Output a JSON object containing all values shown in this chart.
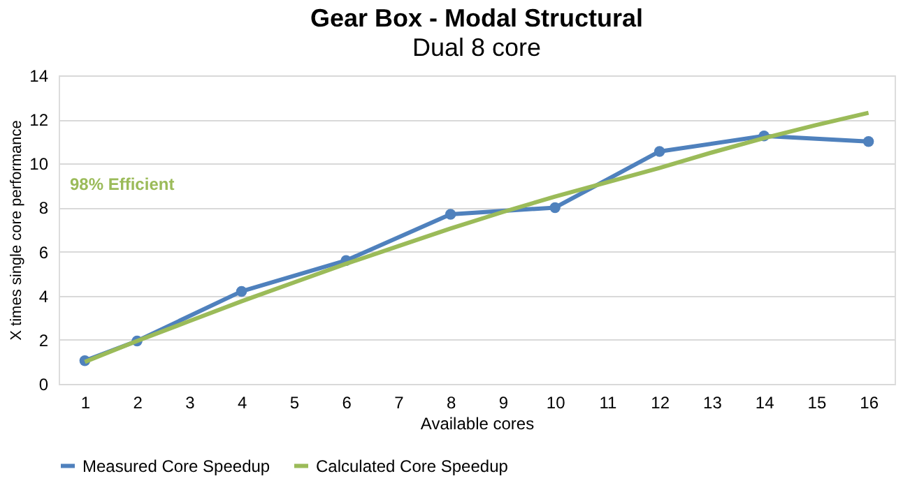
{
  "chart_data": {
    "type": "line",
    "title": "Gear Box - Modal Structural",
    "subtitle": "Dual 8 core",
    "xlabel": "Available cores",
    "ylabel": "X times single core performance",
    "xlim": [
      0.5,
      16.5
    ],
    "xticks": [
      1,
      2,
      3,
      4,
      5,
      6,
      7,
      8,
      9,
      10,
      11,
      12,
      13,
      14,
      15,
      16
    ],
    "ylim": [
      0,
      14
    ],
    "yticks": [
      0,
      2,
      4,
      6,
      8,
      10,
      12,
      14
    ],
    "grid": "y",
    "legend": "bottom",
    "line_style": "solid",
    "series": [
      {
        "name": "Measured Core Speedup",
        "color": "#4f81bd",
        "marker": "circle",
        "x": [
          1,
          2,
          4,
          6,
          8,
          10,
          12,
          14,
          16
        ],
        "values": [
          1.05,
          1.95,
          4.2,
          5.6,
          7.7,
          8.0,
          10.55,
          11.25,
          11.0
        ]
      },
      {
        "name": "Calculated Core Speedup",
        "color": "#9bbb59",
        "marker": "none",
        "x": [
          1,
          2,
          3,
          4,
          5,
          6,
          7,
          8,
          9,
          10,
          11,
          12,
          13,
          14,
          15,
          16
        ],
        "values": [
          1.0,
          1.95,
          2.85,
          3.75,
          4.6,
          5.45,
          6.25,
          7.05,
          7.8,
          8.5,
          9.15,
          9.8,
          10.5,
          11.15,
          11.75,
          12.3
        ]
      }
    ],
    "annotations": [
      "98% Efficient"
    ]
  }
}
